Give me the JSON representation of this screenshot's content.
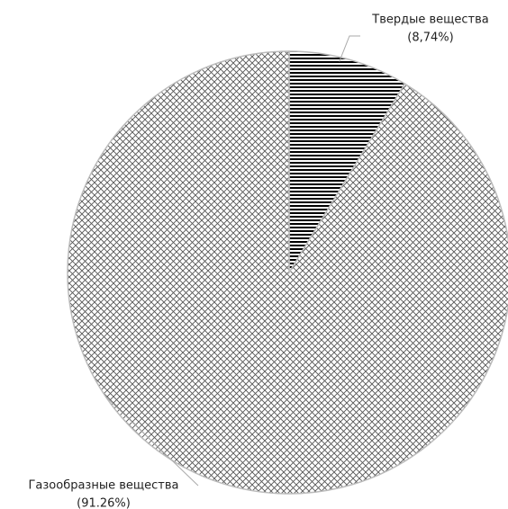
{
  "chart_data": {
    "type": "pie",
    "categories": [
      "Твердые вещества",
      "Газообразные вещества"
    ],
    "values": [
      8.74,
      91.26
    ],
    "value_labels": [
      "(8,74%)",
      "(91.26%)"
    ],
    "patterns": [
      "horizontal-lines",
      "crosshatch"
    ],
    "color": "#000000"
  }
}
